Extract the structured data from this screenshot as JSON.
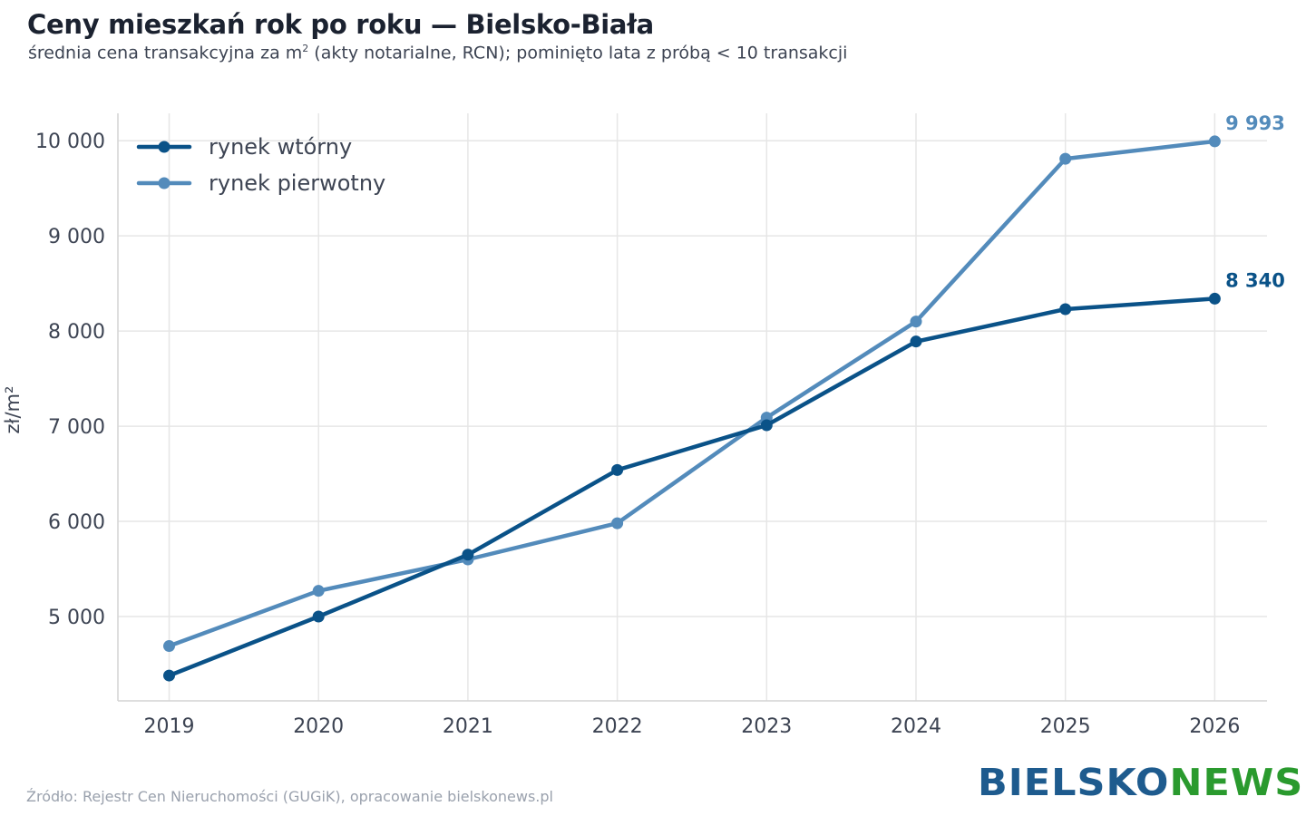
{
  "header": {
    "title": "Ceny mieszkań rok po roku — Bielsko-Biała",
    "subtitle_pre": "średnia cena transakcyjna za m",
    "subtitle_sup": "2",
    "subtitle_post": " (akty notarialne, RCN); pominięto lata z próbą < 10 transakcji"
  },
  "footer": {
    "source": "Źródło: Rejestr Cen Nieruchomości (GUGiK), opracowanie bielskonews.pl",
    "logo_part1": "BIELSKO",
    "logo_part2": "NEWS"
  },
  "chart_data": {
    "type": "line",
    "title": "Ceny mieszkań rok po roku — Bielsko-Biała",
    "xlabel": "",
    "ylabel": "zł/m²",
    "x": [
      2019,
      2020,
      2021,
      2022,
      2023,
      2024,
      2025,
      2026
    ],
    "x_ticks": [
      "2019",
      "2020",
      "2021",
      "2022",
      "2023",
      "2024",
      "2025",
      "2026"
    ],
    "y_ticks": [
      5000,
      6000,
      7000,
      8000,
      9000,
      10000
    ],
    "y_tick_labels": [
      "5 000",
      "6 000",
      "7 000",
      "8 000",
      "9 000",
      "10 000"
    ],
    "ylim": [
      4100,
      10300
    ],
    "grid": true,
    "legend": "top-left",
    "series": [
      {
        "name": "rynek wtórny",
        "color": "#0a5288",
        "values": [
          4380,
          5000,
          5650,
          6540,
          7010,
          7890,
          8230,
          8340
        ],
        "end_label": "8 340"
      },
      {
        "name": "rynek pierwotny",
        "color": "#538bbb",
        "values": [
          4690,
          5270,
          5600,
          5980,
          7090,
          8100,
          9810,
          9993
        ],
        "end_label": "9 993"
      }
    ]
  }
}
